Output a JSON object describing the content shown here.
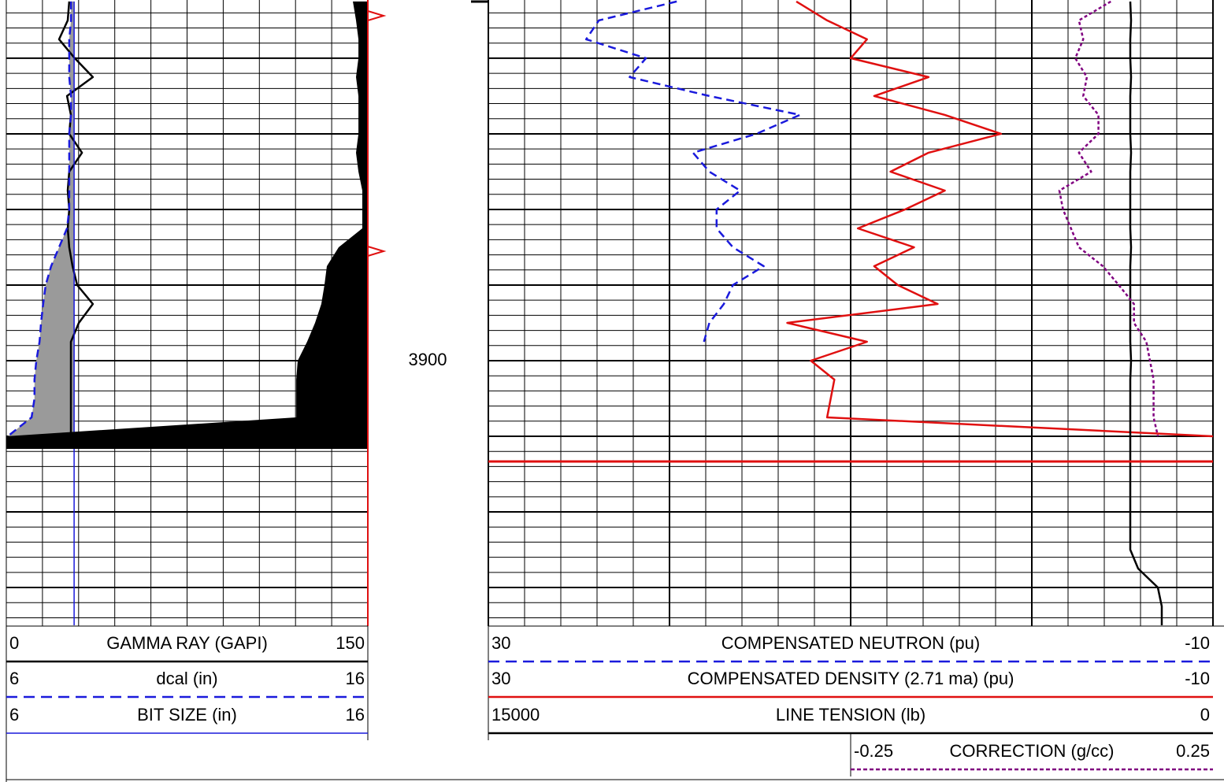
{
  "chart_data": {
    "type": "well-log",
    "depth": [
      3852.5,
      3855,
      3857.5,
      3860,
      3862.5,
      3865,
      3867.5,
      3870,
      3872.5,
      3875,
      3877.5,
      3880,
      3882.5,
      3885,
      3887.5,
      3890,
      3892.5,
      3895,
      3897.5,
      3900,
      3902.5,
      3905,
      3907.5,
      3910,
      3912.5,
      3915,
      3917.5,
      3920,
      3922.5,
      3925,
      3927.5,
      3930,
      3932.5,
      3935
    ],
    "ylim": [
      3852.3,
      3935.1
    ],
    "yticks": [
      3900
    ],
    "ygrid": [
      3860,
      3870,
      3880,
      3890,
      3900,
      3910,
      3920,
      3930
    ],
    "tracks": [
      {
        "series": [
          {
            "name": "GAMMA RAY (GAPI)",
            "xlim": [
              0,
              150
            ],
            "color": "#000000",
            "style": "solid",
            "values": [
              26.1,
              25.5,
              21.9,
              28.4,
              35.9,
              25.2,
              26.8,
              26.1,
              31.4,
              26.1,
              25.5,
              26.1,
              25.5,
              26.1,
              27.5,
              29.4,
              35.9,
              30.1,
              26.8,
              26.8,
              26.8,
              26.8,
              26.8,
              26.8,
              null,
              null,
              null,
              null,
              null,
              null,
              null,
              null,
              null,
              null
            ]
          },
          {
            "name": "dcal (in)",
            "xlim": [
              6,
              16
            ],
            "color": "#1a1adc",
            "style": "dashed",
            "values": [
              7.79,
              7.79,
              7.74,
              7.74,
              7.74,
              7.79,
              7.79,
              7.74,
              7.74,
              7.74,
              7.74,
              7.74,
              7.68,
              7.46,
              7.24,
              7.09,
              7.02,
              6.96,
              6.92,
              6.83,
              6.78,
              6.78,
              6.7,
              6.04,
              null,
              null,
              null,
              null,
              null,
              null,
              null,
              null,
              null,
              null
            ]
          },
          {
            "name": "BIT SIZE (in)",
            "xlim": [
              6,
              16
            ],
            "color": "#1a1adc",
            "style": "thin",
            "values": [
              7.875,
              7.875,
              7.875,
              7.875,
              7.875,
              7.875,
              7.875,
              7.875,
              7.875,
              7.875,
              7.875,
              7.875,
              7.875,
              7.875,
              7.875,
              7.875,
              7.875,
              7.875,
              7.875,
              7.875,
              7.875,
              7.875,
              7.875,
              7.875,
              7.875,
              7.875,
              7.875,
              7.875,
              7.875,
              7.875,
              7.875,
              7.875,
              7.875,
              7.875
            ]
          },
          {
            "color": "#000000",
            "style": "fill",
            "values": [
              143.8,
              145.1,
              146.1,
              146.1,
              145.1,
              146.1,
              146.1,
              146.1,
              145.1,
              146.1,
              147.7,
              147.7,
              147.7,
              137.9,
              133.0,
              132.0,
              130.7,
              128.1,
              124.8,
              120.9,
              120.3,
              120.3,
              120.3,
              0,
              null,
              null,
              null,
              null,
              null,
              null,
              null,
              null,
              null,
              null
            ]
          }
        ]
      },
      {
        "series": [
          {
            "name": "COMPENSATED NEUTRON (pu)",
            "xlim": [
              30,
              -10
            ],
            "color": "#1a1adc",
            "style": "dashed",
            "values": [
              19.6,
              23.9,
              24.6,
              21.3,
              22.2,
              17.8,
              12.8,
              15.2,
              18.7,
              17.8,
              16.1,
              17.4,
              17.4,
              16.5,
              14.8,
              16.5,
              17.0,
              17.8,
              18.1,
              null,
              null,
              null,
              null,
              null,
              null,
              null,
              null,
              null,
              null,
              null,
              null,
              null,
              null,
              null
            ]
          },
          {
            "name": "COMPENSATED DENSITY (2.71 ma) (pu)",
            "xlim": [
              30,
              -10
            ],
            "color": "#e01010",
            "style": "solid",
            "values": [
              13.0,
              11.3,
              9.1,
              10.0,
              5.7,
              8.7,
              4.8,
              1.7,
              5.7,
              7.8,
              4.8,
              7.0,
              9.6,
              6.5,
              8.7,
              7.4,
              5.2,
              13.5,
              9.1,
              12.2,
              10.9,
              11.1,
              11.3,
              -10,
              null,
              null,
              null,
              null,
              null,
              null,
              null,
              null,
              null,
              null
            ]
          },
          {
            "name": "LINE TENSION (lb)",
            "xlim": [
              15000,
              0
            ],
            "color": "#000000",
            "style": "solid",
            "values": [
              1712,
              1696,
              1712,
              1712,
              1696,
              1712,
              1712,
              1712,
              1696,
              1712,
              1712,
              1712,
              1712,
              1696,
              1712,
              1712,
              1712,
              1712,
              1712,
              1696,
              1712,
              1712,
              1712,
              1712,
              1712,
              1712,
              1712,
              1712,
              1712,
              1712,
              1549,
              1141,
              1060,
              1060
            ]
          },
          {
            "name": "CORRECTION (g/cc)",
            "xlim": [
              -0.25,
              0.25
            ],
            "color": "#800080",
            "style": "dotted",
            "values": [
              0.109,
              0.065,
              0.071,
              0.06,
              0.076,
              0.071,
              0.092,
              0.092,
              0.065,
              0.082,
              0.038,
              0.043,
              0.054,
              0.065,
              0.098,
              0.12,
              0.141,
              0.141,
              0.158,
              0.163,
              0.168,
              0.168,
              0.168,
              0.174,
              null,
              null,
              null,
              null,
              null,
              null,
              null,
              null,
              null,
              null
            ]
          }
        ]
      }
    ]
  }
}
